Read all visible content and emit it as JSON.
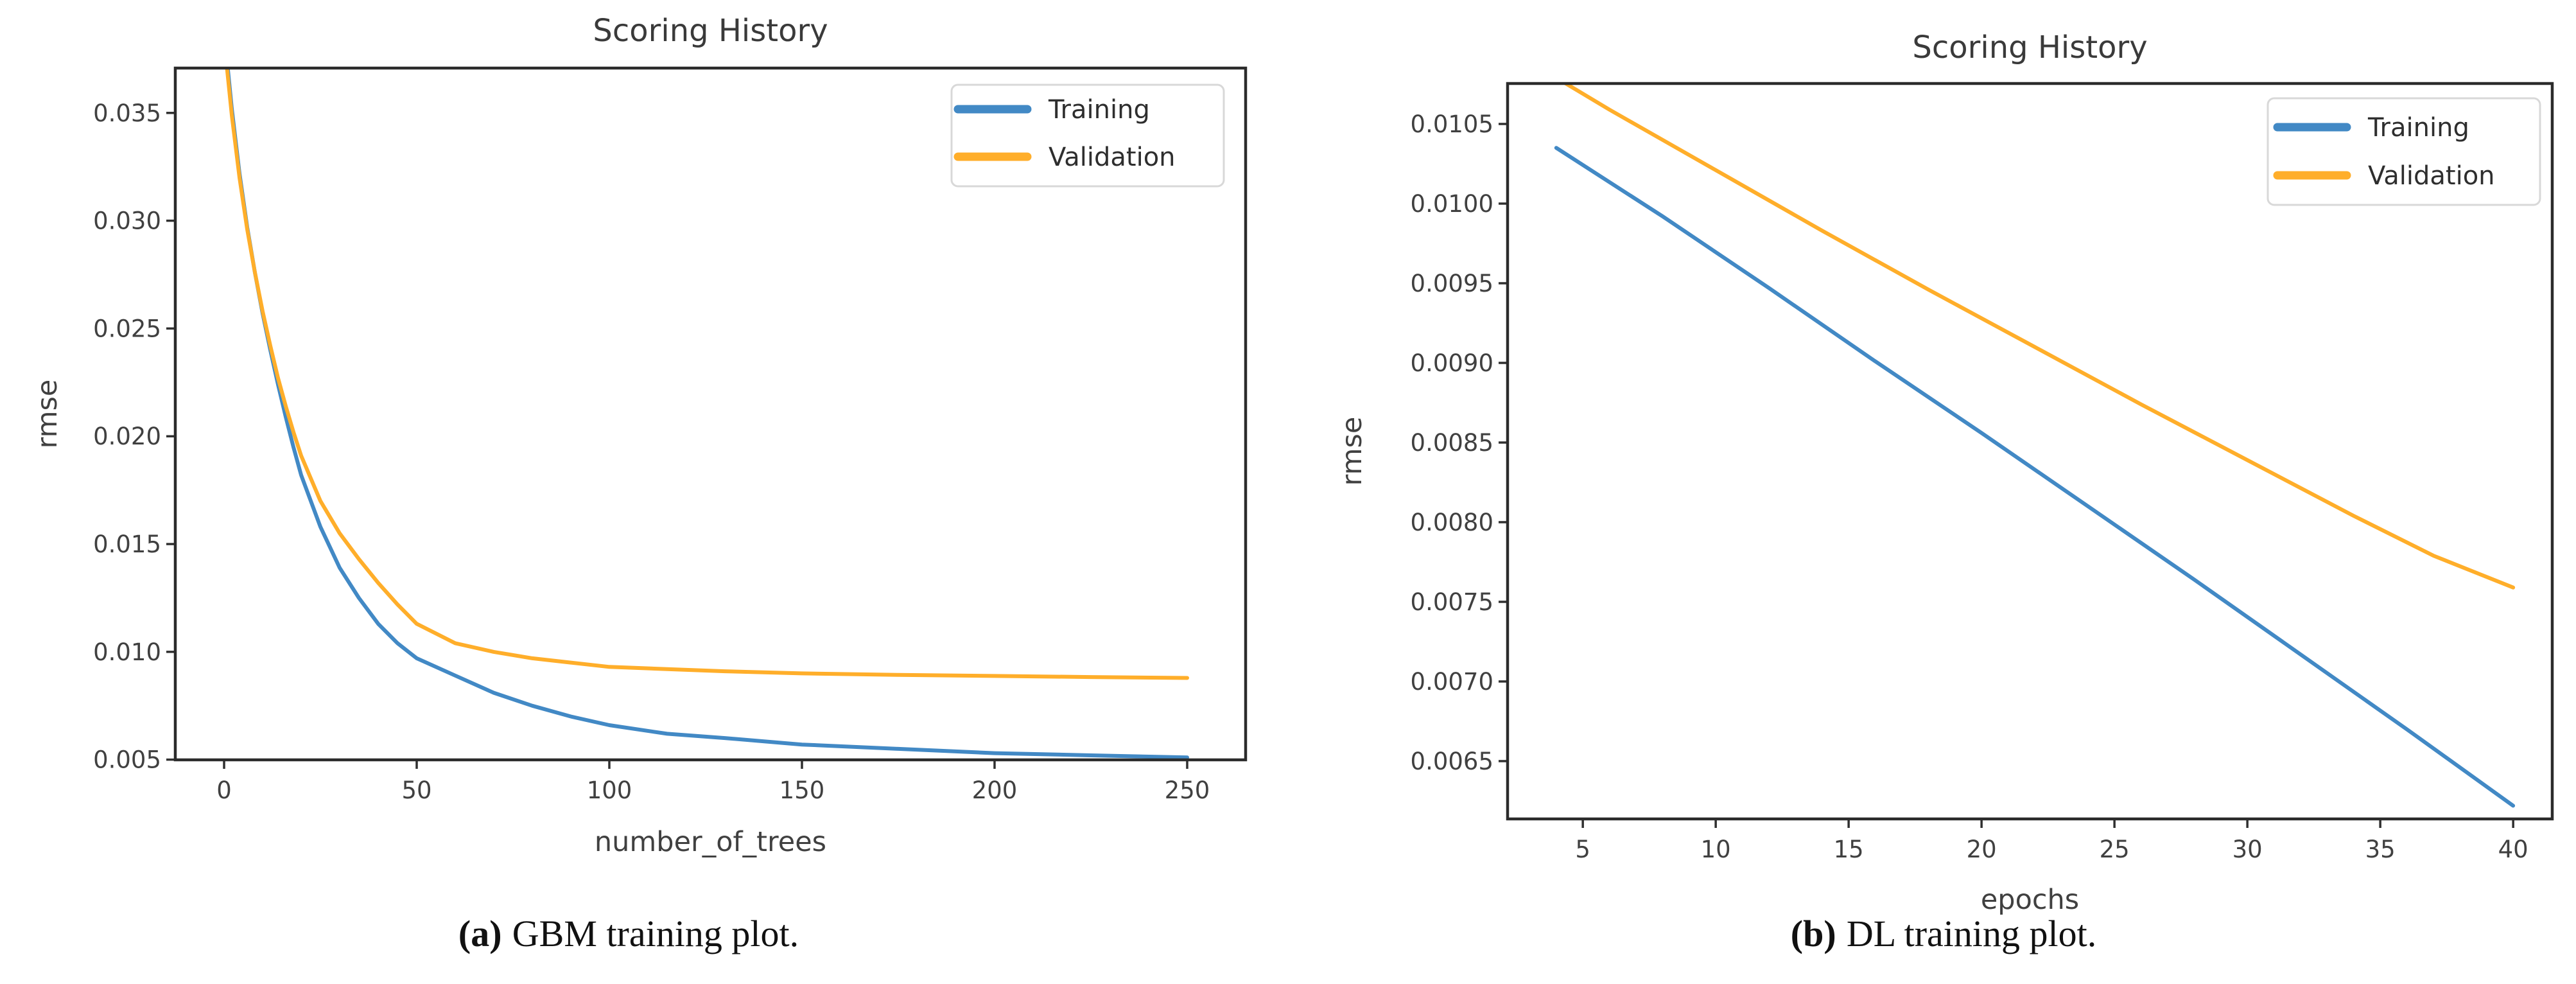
{
  "page": {
    "background": "#ffffff",
    "spine_color": "#2b2b2b",
    "tick_color": "#303030",
    "legend_border_color": "#d8d8d8"
  },
  "chart_data": [
    {
      "id": "gbm-chart",
      "type": "line",
      "title": "Scoring History",
      "xlabel": "number_of_trees",
      "ylabel": "rmse",
      "xlim": [
        -12.67,
        265.17
      ],
      "ylim": [
        0.00499,
        0.03708
      ],
      "grid": false,
      "x_ticks": [
        0,
        50,
        100,
        150,
        200,
        250
      ],
      "x_tick_labels": [
        "0",
        "50",
        "100",
        "150",
        "200",
        "250"
      ],
      "y_ticks": [
        0.035,
        0.03,
        0.025,
        0.02,
        0.015,
        0.01,
        0.005
      ],
      "y_tick_labels": [
        "0.035",
        "0.030",
        "0.025",
        "0.020",
        "0.015",
        "0.010",
        "0.005"
      ],
      "legend": {
        "position": "upper-right",
        "entries": [
          "Training",
          "Validation"
        ]
      },
      "series": [
        {
          "name": "Training",
          "color": "#4289c5",
          "x": [
            0,
            2,
            4,
            6,
            8,
            10,
            12,
            14,
            16,
            18,
            20,
            25,
            30,
            35,
            40,
            45,
            50,
            60,
            70,
            80,
            90,
            100,
            115,
            130,
            150,
            175,
            200,
            225,
            250
          ],
          "y": [
            0.0388,
            0.0352,
            0.0322,
            0.0297,
            0.0276,
            0.0257,
            0.024,
            0.0224,
            0.0209,
            0.0195,
            0.0182,
            0.0158,
            0.0139,
            0.0125,
            0.0113,
            0.0104,
            0.0097,
            0.0089,
            0.0081,
            0.0075,
            0.007,
            0.0066,
            0.0062,
            0.006,
            0.0057,
            0.0055,
            0.0053,
            0.0052,
            0.0051
          ]
        },
        {
          "name": "Validation",
          "color": "#ffae2a",
          "x": [
            0,
            2,
            4,
            6,
            8,
            10,
            12,
            14,
            16,
            18,
            20,
            25,
            30,
            35,
            40,
            45,
            50,
            60,
            70,
            80,
            90,
            100,
            115,
            130,
            150,
            175,
            200,
            225,
            250
          ],
          "y": [
            0.0384,
            0.0349,
            0.032,
            0.0296,
            0.0276,
            0.0258,
            0.0242,
            0.0227,
            0.0214,
            0.0202,
            0.0191,
            0.017,
            0.0155,
            0.0143,
            0.0132,
            0.0122,
            0.0113,
            0.0104,
            0.01,
            0.0097,
            0.0095,
            0.0093,
            0.0092,
            0.0091,
            0.009,
            0.00893,
            0.00888,
            0.00883,
            0.00879
          ]
        }
      ],
      "caption": {
        "label": "(a)",
        "text": "GBM training plot."
      }
    },
    {
      "id": "dl-chart",
      "type": "line",
      "title": "Scoring History",
      "xlabel": "epochs",
      "ylabel": "rmse",
      "xlim": [
        2.17,
        41.47
      ],
      "ylim": [
        0.006137,
        0.010754
      ],
      "grid": false,
      "x_ticks": [
        5,
        10,
        15,
        20,
        25,
        30,
        35,
        40
      ],
      "x_tick_labels": [
        "5",
        "10",
        "15",
        "20",
        "25",
        "30",
        "35",
        "40"
      ],
      "y_ticks": [
        0.0105,
        0.01,
        0.0095,
        0.009,
        0.0085,
        0.008,
        0.0075,
        0.007,
        0.0065
      ],
      "y_tick_labels": [
        "0.0105",
        "0.0100",
        "0.0095",
        "0.0090",
        "0.0085",
        "0.0080",
        "0.0075",
        "0.0070",
        "0.0065"
      ],
      "legend": {
        "position": "upper-right",
        "entries": [
          "Training",
          "Validation"
        ]
      },
      "series": [
        {
          "name": "Training",
          "color": "#4289c5",
          "x": [
            4,
            8,
            12,
            16,
            20,
            24,
            28,
            32,
            36,
            40
          ],
          "y": [
            0.01035,
            0.00992,
            0.00947,
            0.00901,
            0.00856,
            0.0081,
            0.00764,
            0.00717,
            0.0067,
            0.00622
          ]
        },
        {
          "name": "Validation",
          "color": "#ffae2a",
          "x": [
            3.6,
            6,
            10,
            14,
            18,
            22,
            26,
            30,
            34,
            37,
            40
          ],
          "y": [
            0.01083,
            0.01059,
            0.01021,
            0.00983,
            0.00946,
            0.0091,
            0.00874,
            0.00839,
            0.00804,
            0.00779,
            0.00759
          ]
        }
      ],
      "caption": {
        "label": "(b)",
        "text": "DL training plot."
      }
    }
  ]
}
